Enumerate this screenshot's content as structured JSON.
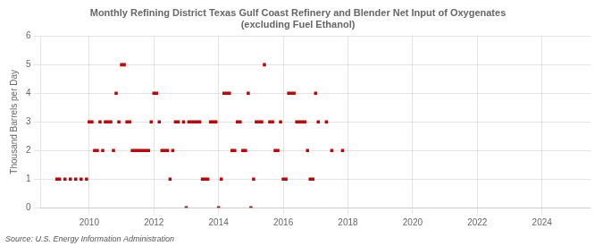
{
  "chart_data": {
    "type": "scatter",
    "title": "Monthly Refining District Texas Gulf Coast Refinery and Blender Net Input of Oxygenates\n(excluding Fuel Ethanol)",
    "ylabel": "Thousand Barrels per Day",
    "annotations": [
      "Source: U.S. Energy Information Administration"
    ],
    "color": "#cc0000",
    "marker": "square",
    "grid": true,
    "xlim": [
      2008.5,
      2025.5
    ],
    "ylim": [
      0,
      6
    ],
    "xticks": [
      2010,
      2012,
      2014,
      2016,
      2018,
      2020,
      2022,
      2024
    ],
    "yticks": [
      0,
      1,
      2,
      3,
      4,
      5,
      6
    ],
    "x": [
      2009.0,
      2009.083,
      2009.25,
      2009.417,
      2009.583,
      2009.75,
      2009.917,
      2010.0,
      2010.083,
      2010.167,
      2010.25,
      2010.333,
      2010.417,
      2010.5,
      2010.583,
      2010.667,
      2010.75,
      2010.833,
      2010.917,
      2011.0,
      2011.083,
      2011.167,
      2011.25,
      2011.333,
      2011.417,
      2011.5,
      2011.583,
      2011.667,
      2011.75,
      2011.833,
      2011.917,
      2012.0,
      2012.083,
      2012.167,
      2012.25,
      2012.333,
      2012.417,
      2012.5,
      2012.583,
      2012.667,
      2012.75,
      2012.917,
      2013.0,
      2013.083,
      2013.167,
      2013.25,
      2013.333,
      2013.417,
      2013.5,
      2013.583,
      2013.667,
      2013.75,
      2013.833,
      2013.917,
      2014.0,
      2014.083,
      2014.167,
      2014.25,
      2014.333,
      2014.417,
      2014.5,
      2014.583,
      2014.667,
      2014.75,
      2014.833,
      2014.917,
      2015.0,
      2015.083,
      2015.167,
      2015.25,
      2015.333,
      2015.417,
      2015.583,
      2015.667,
      2015.75,
      2015.833,
      2015.917,
      2016.0,
      2016.083,
      2016.167,
      2016.25,
      2016.333,
      2016.417,
      2016.5,
      2016.583,
      2016.667,
      2016.75,
      2016.833,
      2016.917,
      2017.0,
      2017.083,
      2017.333,
      2017.5,
      2017.833
    ],
    "values": [
      1,
      1,
      1,
      1,
      1,
      1,
      1,
      3,
      3,
      2,
      2,
      3,
      2,
      3,
      3,
      3,
      2,
      4,
      3,
      5,
      5,
      3,
      3,
      2,
      2,
      2,
      2,
      2,
      2,
      2,
      3,
      4,
      4,
      3,
      2,
      2,
      2,
      1,
      2,
      3,
      3,
      3,
      0,
      3,
      3,
      3,
      3,
      3,
      1,
      1,
      1,
      3,
      3,
      3,
      0,
      1,
      4,
      4,
      4,
      2,
      2,
      3,
      3,
      2,
      2,
      4,
      0,
      1,
      3,
      3,
      3,
      5,
      3,
      3,
      2,
      2,
      3,
      1,
      1,
      4,
      4,
      4,
      3,
      3,
      3,
      3,
      2,
      1,
      1,
      4,
      3,
      3,
      2,
      2
    ]
  }
}
